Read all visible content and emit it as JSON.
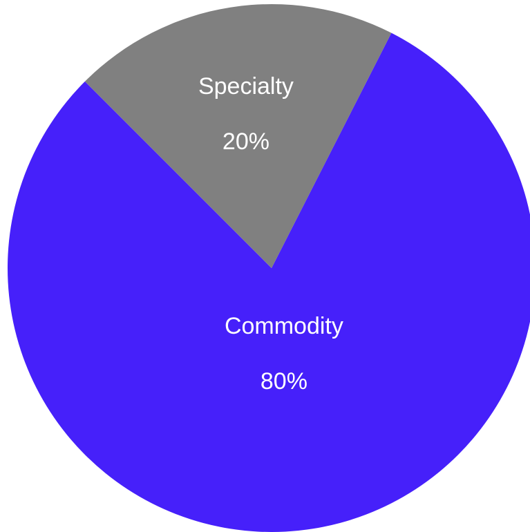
{
  "chart_data": {
    "type": "pie",
    "categories": [
      "Commodity",
      "Specialty"
    ],
    "values": [
      80,
      20
    ],
    "value_labels": [
      "80%",
      "20%"
    ],
    "colors": [
      "#4620fa",
      "#808080"
    ],
    "title": "",
    "legend": "none"
  }
}
